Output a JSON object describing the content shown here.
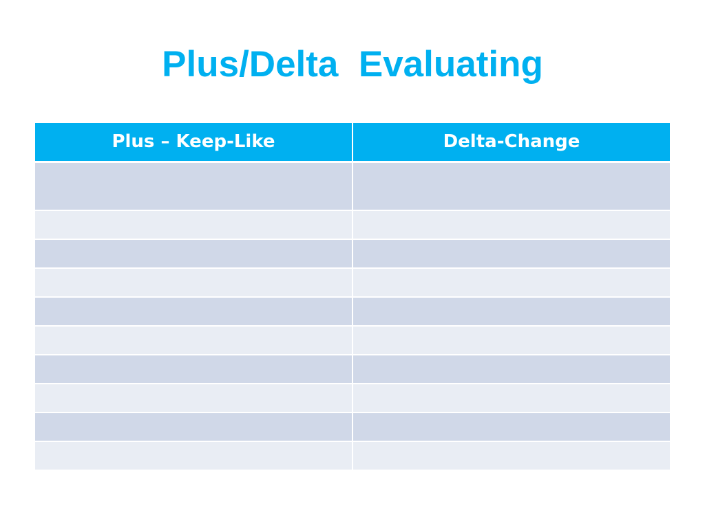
{
  "slide": {
    "title": "Plus/Delta  Evaluating"
  },
  "table": {
    "headers": [
      "Plus – Keep-Like",
      "Delta-Change"
    ],
    "rows": [
      [
        "",
        ""
      ],
      [
        "",
        ""
      ],
      [
        "",
        ""
      ],
      [
        "",
        ""
      ],
      [
        "",
        ""
      ],
      [
        "",
        ""
      ],
      [
        "",
        ""
      ],
      [
        "",
        ""
      ],
      [
        "",
        ""
      ],
      [
        "",
        ""
      ]
    ]
  },
  "colors": {
    "title": "#00b0f0",
    "header_bg": "#00b0f0",
    "header_text": "#ffffff",
    "row_band_dark": "#d0d8e8",
    "row_band_light": "#e9edf4"
  }
}
